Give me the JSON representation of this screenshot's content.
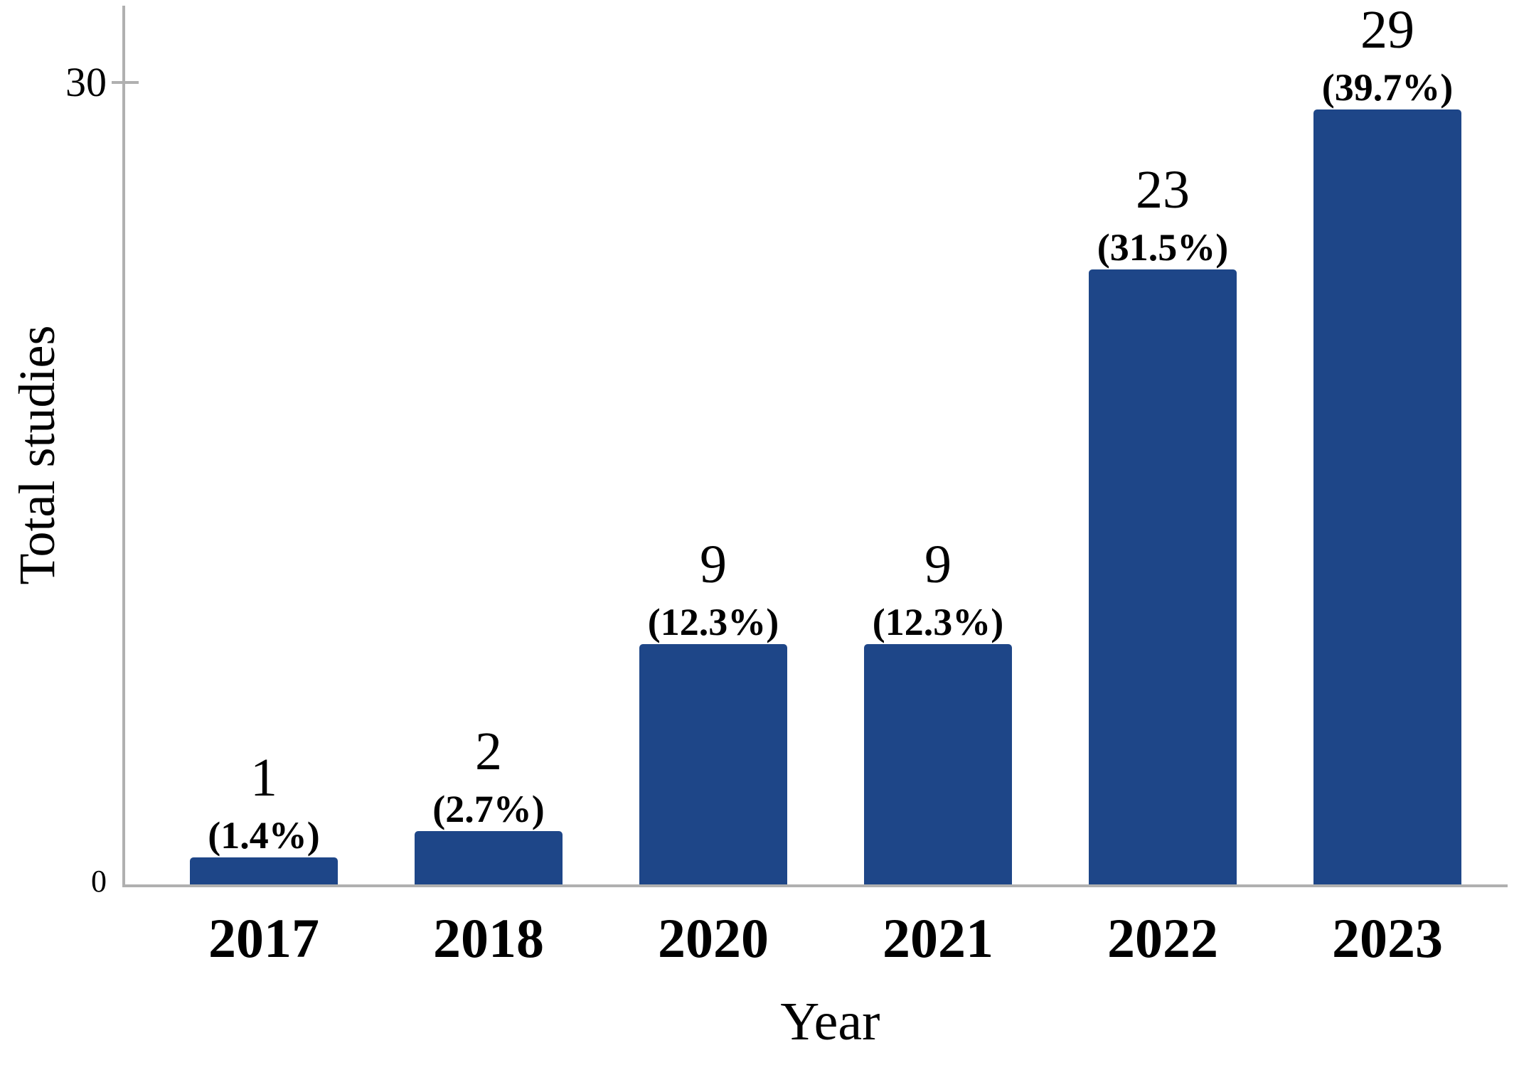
{
  "figure": {
    "background_color": "#ffffff",
    "text_color": "#000000"
  },
  "chart_data": {
    "type": "bar",
    "title": "",
    "xlabel": "Year",
    "ylabel": "Total studies",
    "categories": [
      "2017",
      "2018",
      "2020",
      "2021",
      "2022",
      "2023"
    ],
    "values": [
      1,
      2,
      9,
      9,
      23,
      29
    ],
    "count_labels": [
      "1",
      "2",
      "9",
      "9",
      "23",
      "29"
    ],
    "percent_labels": [
      "(1.4%)",
      "(2.7%)",
      "(12.3%)",
      "(12.3%)",
      "(31.5%)",
      "(39.7%)"
    ],
    "y_ticks": [
      {
        "value": 0,
        "label": "0"
      },
      {
        "value": 30,
        "label": "30"
      }
    ],
    "ylim": [
      0,
      33
    ],
    "grid": false,
    "legend": "none",
    "bar_color": "#1E4688",
    "axis_color": "#B0B0B0"
  }
}
